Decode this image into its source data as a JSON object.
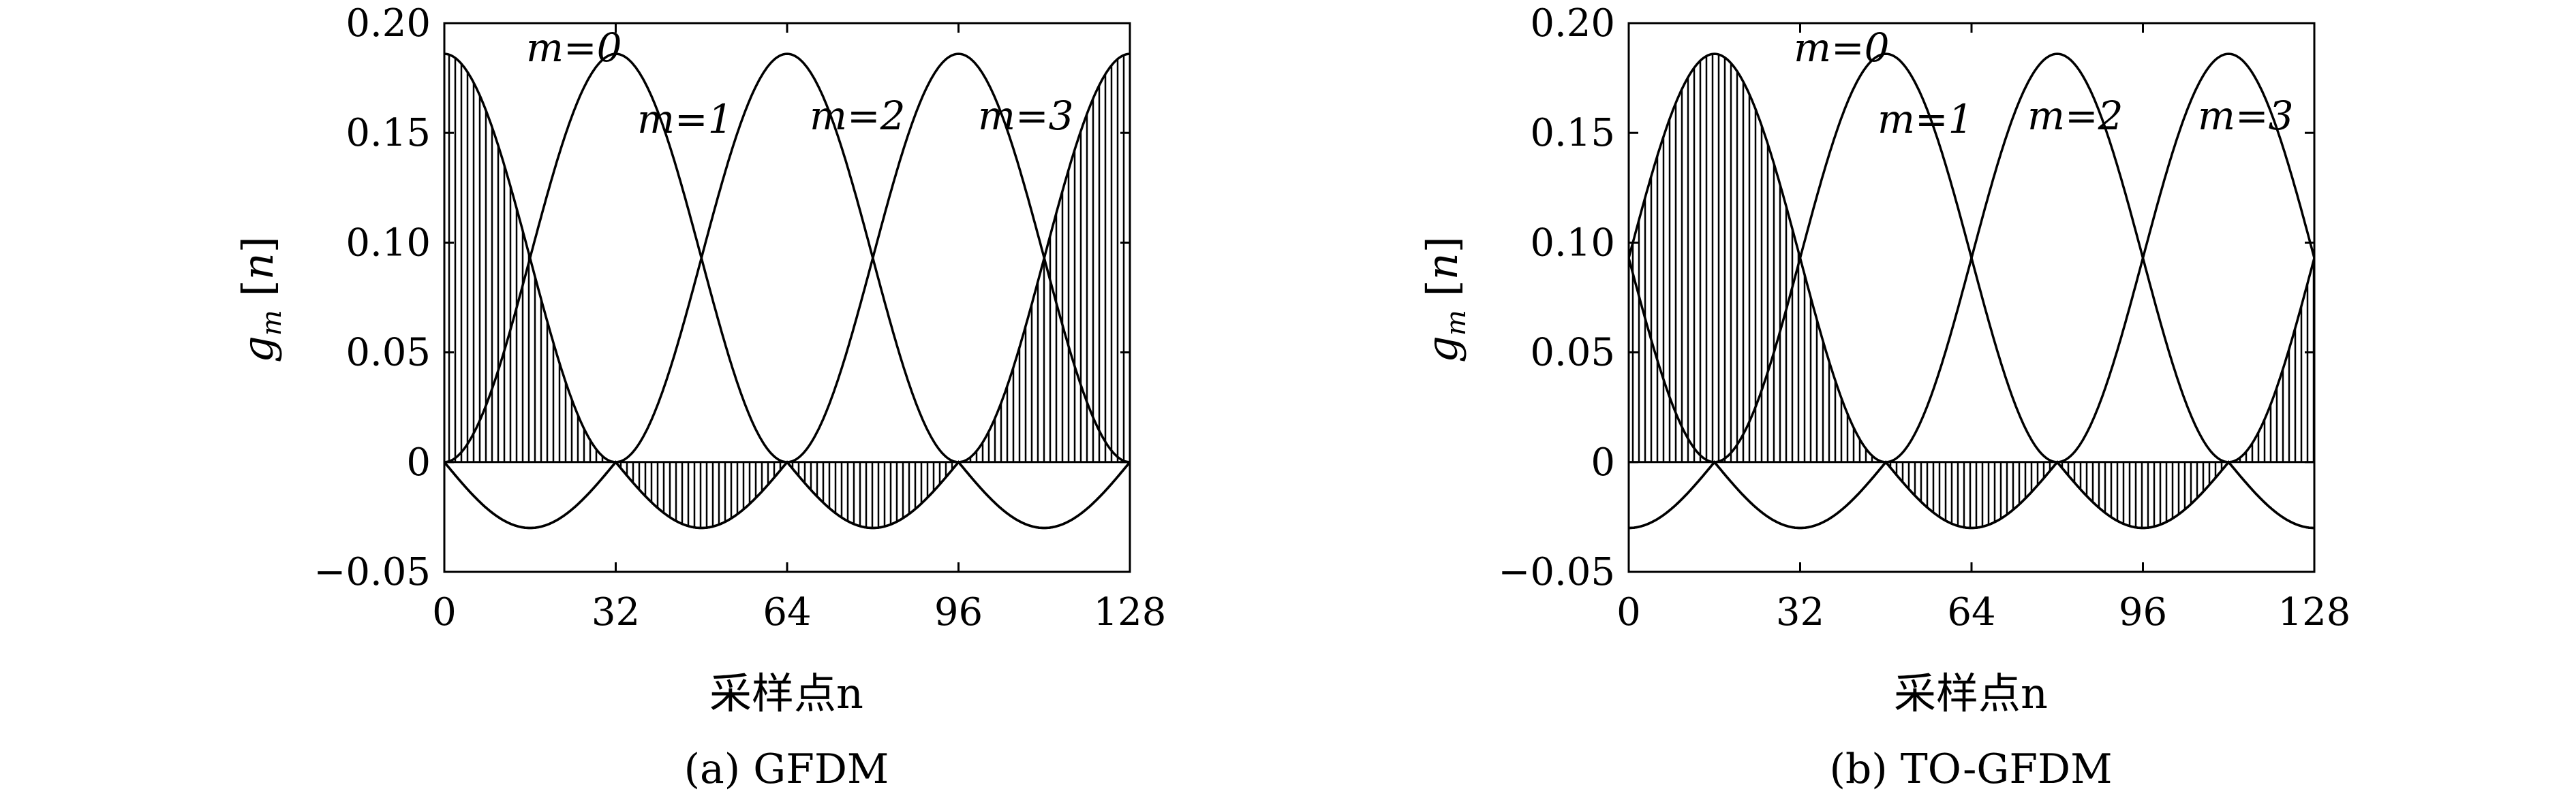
{
  "chart_data": [
    {
      "type": "line",
      "caption": "(a) GFDM",
      "xlabel": "采样点n",
      "ylabel": "g_m [n]",
      "xlim": [
        0,
        128
      ],
      "ylim": [
        -0.05,
        0.2
      ],
      "x_ticks": [
        "0",
        "32",
        "64",
        "96",
        "128"
      ],
      "y_ticks": [
        "0.20",
        "0.15",
        "0.10",
        "0.05",
        "0",
        "−0.05"
      ],
      "period": 128,
      "pulse_shift": 0,
      "shaded_series": "m=0",
      "series": [
        {
          "name": "m=0",
          "peak_x": 0,
          "peak_y": 0.186,
          "min_y": -0.03
        },
        {
          "name": "m=1",
          "peak_x": 32,
          "peak_y": 0.186,
          "min_y": -0.03
        },
        {
          "name": "m=2",
          "peak_x": 64,
          "peak_y": 0.186,
          "min_y": -0.03
        },
        {
          "name": "m=3",
          "peak_x": 96,
          "peak_y": 0.186,
          "min_y": -0.03
        }
      ]
    },
    {
      "type": "line",
      "caption": "(b) TO-GFDM",
      "xlabel": "采样点n",
      "ylabel": "g_m [n]",
      "xlim": [
        0,
        128
      ],
      "ylim": [
        -0.05,
        0.2
      ],
      "x_ticks": [
        "0",
        "32",
        "64",
        "96",
        "128"
      ],
      "y_ticks": [
        "0.20",
        "0.15",
        "0.10",
        "0.05",
        "0",
        "−0.05"
      ],
      "period": 128,
      "pulse_shift": 16,
      "shaded_series": "m=0",
      "series": [
        {
          "name": "m=0",
          "peak_x": 16,
          "peak_y": 0.186,
          "min_y": -0.03
        },
        {
          "name": "m=1",
          "peak_x": 48,
          "peak_y": 0.186,
          "min_y": -0.03
        },
        {
          "name": "m=2",
          "peak_x": 80,
          "peak_y": 0.186,
          "min_y": -0.03
        },
        {
          "name": "m=3",
          "peak_x": 112,
          "peak_y": 0.186,
          "min_y": -0.03
        }
      ]
    }
  ]
}
